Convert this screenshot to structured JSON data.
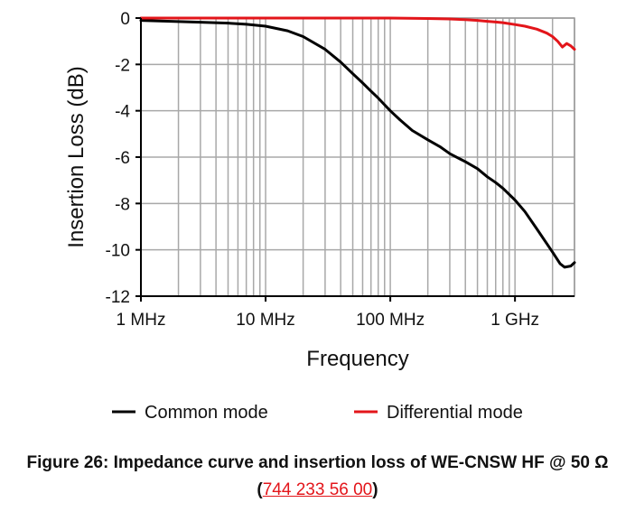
{
  "chart_data": {
    "type": "line",
    "xlabel": "Frequency",
    "ylabel": "Insertion Loss (dB)",
    "x_scale": "log",
    "xlim": [
      "1 MHz",
      "3 GHz"
    ],
    "ylim": [
      -12,
      0
    ],
    "yticks": [
      0,
      -2,
      -4,
      -6,
      -8,
      -10,
      -12
    ],
    "xticks": [
      "1 MHz",
      "10 MHz",
      "100 MHz",
      "1 GHz"
    ],
    "grid": true,
    "legend_position": "bottom",
    "series": [
      {
        "name": "Common mode",
        "color": "#000000",
        "x_MHz": [
          1,
          2,
          3,
          5,
          7,
          10,
          15,
          20,
          30,
          40,
          50,
          60,
          70,
          80,
          100,
          120,
          150,
          200,
          250,
          300,
          400,
          500,
          600,
          700,
          800,
          1000,
          1200,
          1500,
          2000,
          2300,
          2500,
          2800,
          3000
        ],
        "y": [
          -0.1,
          -0.15,
          -0.18,
          -0.22,
          -0.27,
          -0.35,
          -0.55,
          -0.8,
          -1.35,
          -1.9,
          -2.4,
          -2.8,
          -3.15,
          -3.45,
          -4.0,
          -4.4,
          -4.85,
          -5.25,
          -5.55,
          -5.85,
          -6.2,
          -6.5,
          -6.85,
          -7.1,
          -7.35,
          -7.85,
          -8.35,
          -9.1,
          -10.1,
          -10.6,
          -10.75,
          -10.7,
          -10.55
        ]
      },
      {
        "name": "Differential mode",
        "color": "#e3151a",
        "x_MHz": [
          1,
          10,
          50,
          100,
          200,
          300,
          400,
          500,
          600,
          700,
          800,
          1000,
          1200,
          1500,
          1800,
          2000,
          2200,
          2400,
          2600,
          2800,
          3000
        ],
        "y": [
          0,
          0,
          0,
          0,
          -0.02,
          -0.04,
          -0.07,
          -0.1,
          -0.14,
          -0.17,
          -0.2,
          -0.28,
          -0.35,
          -0.48,
          -0.65,
          -0.8,
          -1.0,
          -1.25,
          -1.1,
          -1.2,
          -1.35
        ]
      }
    ]
  },
  "caption": {
    "line1": "Figure 26: Impedance curve and insertion loss of WE-CNSW HF @ 50 Ω",
    "open_paren": "(",
    "part_number": "744 233 56 00",
    "close_paren": ")"
  }
}
